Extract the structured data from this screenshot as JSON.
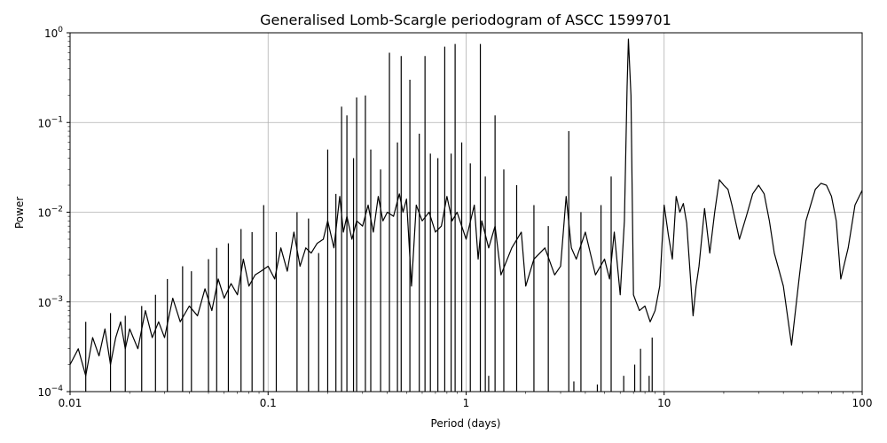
{
  "chart_data": {
    "type": "line",
    "title": "Generalised Lomb-Scargle periodogram of ASCC 1599701",
    "xlabel": "Period (days)",
    "ylabel": "Power",
    "xscale": "log",
    "yscale": "log",
    "xlim": [
      0.01,
      100
    ],
    "ylim": [
      0.0001,
      1
    ],
    "grid": true,
    "x_ticks": [
      {
        "value": 0.01,
        "label": "0.01"
      },
      {
        "value": 0.1,
        "label": "0.1"
      },
      {
        "value": 1,
        "label": "1"
      },
      {
        "value": 10,
        "label": "10"
      },
      {
        "value": 100,
        "label": "100"
      }
    ],
    "y_ticks": [
      {
        "value": 0.0001,
        "base": "10",
        "exp": "−4"
      },
      {
        "value": 0.001,
        "base": "10",
        "exp": "−3"
      },
      {
        "value": 0.01,
        "base": "10",
        "exp": "−2"
      },
      {
        "value": 0.1,
        "base": "10",
        "exp": "−1"
      },
      {
        "value": 1,
        "base": "10",
        "exp": "0"
      }
    ],
    "color": "#000000",
    "series": [
      {
        "x": [
          0.01,
          0.011,
          0.012,
          0.013,
          0.014,
          0.015,
          0.016,
          0.017,
          0.018,
          0.019,
          0.02,
          0.022,
          0.024,
          0.026,
          0.028,
          0.03,
          0.033,
          0.036,
          0.04,
          0.044,
          0.048,
          0.052,
          0.056,
          0.06,
          0.065,
          0.07,
          0.075,
          0.08,
          0.086,
          0.092,
          0.1,
          0.108,
          0.116,
          0.125,
          0.135,
          0.145,
          0.155,
          0.165,
          0.177,
          0.19,
          0.2,
          0.215,
          0.23,
          0.24,
          0.25,
          0.265,
          0.28,
          0.3,
          0.32,
          0.34,
          0.36,
          0.38,
          0.4,
          0.43,
          0.46,
          0.48,
          0.5,
          0.53,
          0.56,
          0.6,
          0.65,
          0.7,
          0.75,
          0.8,
          0.85,
          0.9,
          1.0,
          1.1,
          1.15,
          1.2,
          1.3,
          1.4,
          1.5,
          1.7,
          1.9,
          2.0,
          2.2,
          2.5,
          2.8,
          3.0,
          3.2,
          3.4,
          3.6,
          4.0,
          4.5,
          5.0,
          5.3,
          5.6,
          6.0,
          6.3,
          6.5,
          6.6,
          6.8,
          7.0,
          7.5,
          8.0,
          8.5,
          9.0,
          9.5,
          10.0,
          10.5,
          11.0,
          11.5,
          12.0,
          12.5,
          13.0,
          14.0,
          14.5,
          15.0,
          16.0,
          17.0,
          18.0,
          19.0,
          20.0,
          21.0,
          22.0,
          24.0,
          26.0,
          28.0,
          30.0,
          32.0,
          34.0,
          36.0,
          40.0,
          44.0,
          48.0,
          52.0,
          58.0,
          62.0,
          66.0,
          70.0,
          74.0,
          78.0,
          85.0,
          92.0,
          100.0
        ],
        "y": [
          0.0002,
          0.0003,
          0.00015,
          0.0004,
          0.00025,
          0.0005,
          0.0002,
          0.0004,
          0.0006,
          0.0003,
          0.0005,
          0.0003,
          0.0008,
          0.0004,
          0.0006,
          0.0004,
          0.0011,
          0.0006,
          0.0009,
          0.0007,
          0.0014,
          0.0008,
          0.0018,
          0.0011,
          0.0016,
          0.0012,
          0.003,
          0.0015,
          0.002,
          0.0022,
          0.0025,
          0.0018,
          0.004,
          0.0022,
          0.006,
          0.0025,
          0.004,
          0.0035,
          0.0045,
          0.005,
          0.008,
          0.004,
          0.015,
          0.006,
          0.009,
          0.005,
          0.008,
          0.007,
          0.012,
          0.006,
          0.015,
          0.008,
          0.01,
          0.009,
          0.016,
          0.01,
          0.014,
          0.0015,
          0.012,
          0.008,
          0.01,
          0.006,
          0.007,
          0.015,
          0.008,
          0.01,
          0.005,
          0.012,
          0.003,
          0.008,
          0.004,
          0.007,
          0.002,
          0.004,
          0.006,
          0.0015,
          0.003,
          0.004,
          0.002,
          0.0025,
          0.015,
          0.004,
          0.003,
          0.006,
          0.002,
          0.003,
          0.0018,
          0.006,
          0.0012,
          0.008,
          0.25,
          0.85,
          0.2,
          0.0012,
          0.0008,
          0.0009,
          0.0006,
          0.0008,
          0.0015,
          0.012,
          0.0056,
          0.003,
          0.015,
          0.01,
          0.0125,
          0.0075,
          0.0007,
          0.0015,
          0.0025,
          0.011,
          0.0035,
          0.01,
          0.023,
          0.02,
          0.018,
          0.012,
          0.005,
          0.009,
          0.016,
          0.02,
          0.016,
          0.008,
          0.0035,
          0.0015,
          0.00033,
          0.0018,
          0.008,
          0.018,
          0.021,
          0.02,
          0.015,
          0.008,
          0.0018,
          0.004,
          0.012,
          0.0175
        ]
      },
      {
        "x": [
          0.012,
          0.016,
          0.019,
          0.023,
          0.027,
          0.031,
          0.037,
          0.041,
          0.05,
          0.055,
          0.063,
          0.073,
          0.083,
          0.095,
          0.11,
          0.14,
          0.16,
          0.18,
          0.2,
          0.22,
          0.235,
          0.25,
          0.27,
          0.28,
          0.31,
          0.33,
          0.37,
          0.41,
          0.45,
          0.47,
          0.52,
          0.58,
          0.62,
          0.66,
          0.72,
          0.78,
          0.84,
          0.88,
          0.95,
          1.05,
          1.18,
          1.25,
          1.4,
          1.55,
          1.8,
          2.2,
          2.6,
          3.3,
          3.8,
          4.8,
          5.4
        ],
        "y": [
          0.0006,
          0.00075,
          0.0007,
          0.0009,
          0.0012,
          0.0018,
          0.0025,
          0.0022,
          0.003,
          0.004,
          0.0045,
          0.0065,
          0.006,
          0.012,
          0.006,
          0.01,
          0.0085,
          0.0035,
          0.05,
          0.016,
          0.15,
          0.12,
          0.04,
          0.19,
          0.2,
          0.05,
          0.03,
          0.6,
          0.06,
          0.55,
          0.3,
          0.075,
          0.55,
          0.045,
          0.04,
          0.7,
          0.045,
          0.75,
          0.06,
          0.035,
          0.75,
          0.025,
          0.12,
          0.03,
          0.02,
          0.012,
          0.007,
          0.08,
          0.01,
          0.012,
          0.025
        ]
      },
      {
        "x": [
          0.45,
          0.47,
          0.5,
          0.55,
          0.6,
          0.7,
          0.8,
          0.9,
          1.0,
          1.15,
          1.3,
          1.6,
          2.0,
          2.4,
          2.7,
          3.3,
          3.5,
          4.2,
          4.6,
          6.0,
          6.25,
          7.1,
          7.6,
          8.4,
          8.7
        ],
        "y": [
          0.0001,
          0.0001,
          0.0001,
          0.0001,
          0.0001,
          0.0001,
          0.0001,
          0.0001,
          0.0001,
          0.0001,
          0.00015,
          0.0001,
          0.0001,
          0.0001,
          0.0001,
          0.0001,
          0.00013,
          0.0001,
          0.00012,
          0.0001,
          0.00015,
          0.0002,
          0.0003,
          0.00015,
          0.0004
        ]
      }
    ]
  }
}
